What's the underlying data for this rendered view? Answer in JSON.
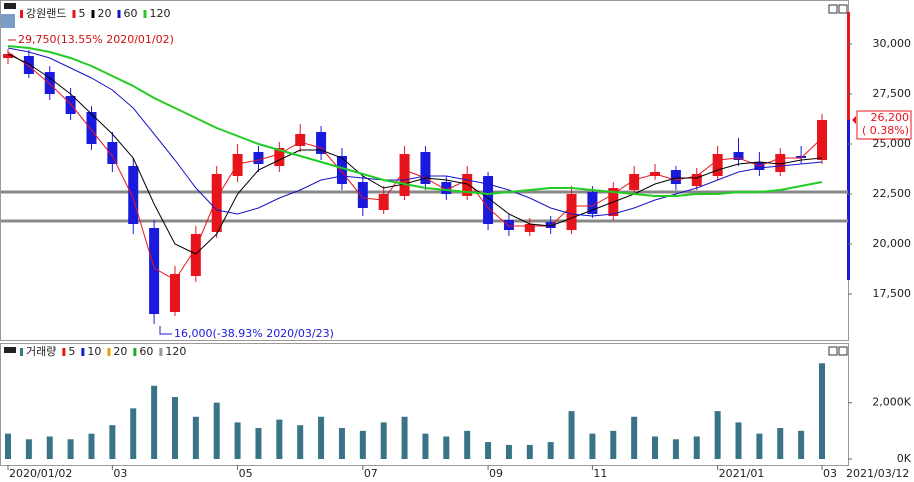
{
  "chart_data": [
    {
      "type": "candlestick",
      "title": "강원랜드",
      "categories": [
        "2020/01/02",
        null,
        null,
        null,
        null,
        "03",
        null,
        null,
        null,
        null,
        null,
        "05",
        null,
        null,
        null,
        null,
        null,
        "07",
        null,
        null,
        null,
        null,
        null,
        "09",
        null,
        null,
        null,
        null,
        "11",
        null,
        null,
        null,
        null,
        null,
        "2021/01",
        null,
        null,
        null,
        null,
        "03"
      ],
      "end_label": "2021/03/12",
      "open": [
        29300,
        29400,
        28600,
        27400,
        26600,
        25100,
        23900,
        20800,
        16600,
        18400,
        20600,
        23400,
        24600,
        23900,
        24900,
        25600,
        24400,
        23100,
        21700,
        22400,
        24600,
        23100,
        22400,
        23400,
        21200,
        20600,
        21100,
        20700,
        22600,
        21400,
        22700,
        23400,
        23700,
        22900,
        23400,
        24600,
        24100,
        23600,
        24400,
        24200
      ],
      "high": [
        29750,
        29700,
        28900,
        27800,
        26900,
        25600,
        24300,
        21200,
        18900,
        20900,
        23900,
        25000,
        24900,
        25100,
        26000,
        25900,
        24800,
        23400,
        22900,
        24900,
        24900,
        23400,
        23900,
        23600,
        21500,
        21300,
        21400,
        22900,
        22900,
        23100,
        23900,
        24000,
        23900,
        23800,
        24900,
        25300,
        24600,
        24800,
        24900,
        26500
      ],
      "low": [
        29000,
        28300,
        27200,
        26200,
        24700,
        23600,
        20500,
        16000,
        16400,
        18100,
        20300,
        23100,
        23600,
        23600,
        24600,
        24200,
        22700,
        21400,
        21500,
        22200,
        22700,
        22200,
        22200,
        20700,
        20400,
        20400,
        20500,
        20500,
        21300,
        21200,
        22500,
        23200,
        22700,
        22700,
        23200,
        23900,
        23400,
        23400,
        24000,
        24000
      ],
      "close": [
        29500,
        28500,
        27500,
        26500,
        25000,
        24000,
        21000,
        16500,
        18500,
        20500,
        23500,
        24500,
        24000,
        24800,
        25500,
        24500,
        23000,
        21800,
        22500,
        24500,
        23000,
        22500,
        23500,
        21000,
        20700,
        21000,
        20800,
        22500,
        21500,
        22800,
        23500,
        23600,
        23000,
        23500,
        24500,
        24200,
        23700,
        24500,
        24300,
        26200
      ],
      "up_color": "#e8141c",
      "down_color": "#1a1adc",
      "ma": [
        {
          "name": "5",
          "color": "#e8141c",
          "values": [
            29600,
            28900,
            28000,
            27000,
            25700,
            24400,
            22300,
            18800,
            18200,
            19800,
            22300,
            24000,
            24200,
            24500,
            25100,
            24800,
            23600,
            22300,
            22200,
            23700,
            23300,
            22700,
            23200,
            21800,
            20900,
            20900,
            20900,
            21900,
            21900,
            22500,
            23200,
            23500,
            23200,
            23400,
            24200,
            24300,
            23900,
            24300,
            24300,
            25300
          ]
        },
        {
          "name": "20",
          "color": "#000000",
          "values": [
            29500,
            29000,
            28300,
            27500,
            26500,
            25500,
            24300,
            22000,
            20000,
            19500,
            20500,
            22500,
            23700,
            24200,
            24700,
            24700,
            24300,
            23400,
            22800,
            23000,
            23300,
            23200,
            23000,
            22300,
            21500,
            21000,
            20900,
            21300,
            21700,
            22100,
            22500,
            23000,
            23300,
            23300,
            23700,
            24000,
            24100,
            24000,
            24200,
            24300
          ]
        },
        {
          "name": "60",
          "color": "#1414c8",
          "values": [
            29800,
            29600,
            29300,
            28800,
            28300,
            27700,
            26800,
            25500,
            24200,
            22800,
            21700,
            21500,
            21800,
            22300,
            22700,
            23200,
            23400,
            23300,
            23200,
            23200,
            23400,
            23400,
            23200,
            23000,
            22700,
            22300,
            21800,
            21500,
            21400,
            21500,
            21800,
            22200,
            22500,
            22800,
            23200,
            23600,
            23800,
            23900,
            24000,
            24100
          ]
        },
        {
          "name": "120",
          "color": "#22cc22",
          "values": [
            29900,
            29800,
            29600,
            29300,
            28900,
            28400,
            27900,
            27300,
            26800,
            26300,
            25800,
            25400,
            25000,
            24700,
            24400,
            24100,
            23800,
            23500,
            23200,
            23000,
            22800,
            22700,
            22600,
            22500,
            22600,
            22700,
            22800,
            22800,
            22700,
            22600,
            22500,
            22400,
            22400,
            22500,
            22500,
            22600,
            22600,
            22700,
            22900,
            23100
          ]
        }
      ],
      "hlines": [
        22600,
        21150
      ],
      "ylim": [
        15200,
        31600
      ],
      "yticks": [
        {
          "value": 17500,
          "label": "17,500"
        },
        {
          "value": 20000,
          "label": "20,000"
        },
        {
          "value": 22500,
          "label": "22,500"
        },
        {
          "value": 25000,
          "label": "25,000"
        },
        {
          "value": 27500,
          "label": "27,500"
        },
        {
          "value": 30000,
          "label": "30,000"
        }
      ],
      "annotations": [
        "29,750(13.55% 2020/01/02)",
        "16,000(-38.93% 2020/03/23)"
      ],
      "last_price": {
        "value": 26200,
        "label": "26,200"
      },
      "last_change": "( 0.38%)"
    },
    {
      "type": "bar",
      "title": "거래량",
      "color": "#3a7388",
      "values": [
        900,
        700,
        800,
        700,
        900,
        1200,
        1800,
        2600,
        2200,
        1500,
        2000,
        1300,
        1100,
        1400,
        1200,
        1500,
        1100,
        1000,
        1300,
        1500,
        900,
        800,
        1000,
        600,
        500,
        500,
        600,
        1700,
        900,
        1000,
        1500,
        800,
        700,
        800,
        1700,
        1300,
        900,
        1100,
        1000,
        3400
      ],
      "legend": [
        {
          "name": "5",
          "color": "#e8141c"
        },
        {
          "name": "10",
          "color": "#1a1adc"
        },
        {
          "name": "20",
          "color": "#e8a000"
        },
        {
          "name": "60",
          "color": "#22aa22"
        },
        {
          "name": "120",
          "color": "#999999"
        }
      ],
      "ylim": [
        0,
        3800
      ],
      "yticks": [
        {
          "value": 0,
          "label": "0K"
        },
        {
          "value": 2000,
          "label": "2,000K"
        }
      ]
    }
  ]
}
